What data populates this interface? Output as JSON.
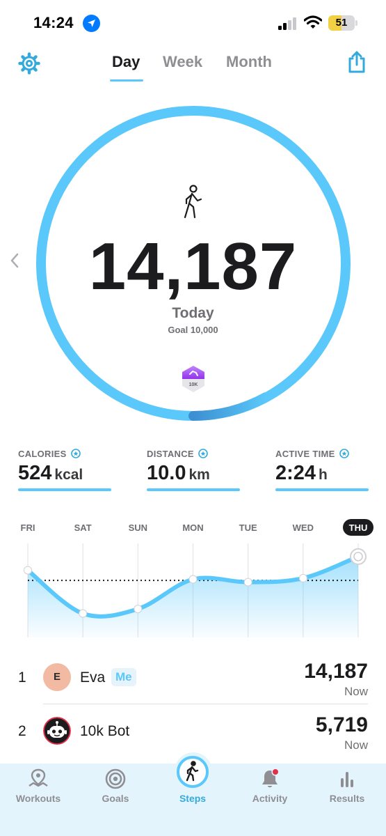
{
  "status_bar": {
    "time": "14:24",
    "battery_level": "51",
    "icons": [
      "location-arrow-icon",
      "cellular-signal-icon",
      "wifi-icon",
      "battery-icon"
    ]
  },
  "header": {
    "tabs": [
      {
        "label": "Day",
        "active": true
      },
      {
        "label": "Week",
        "active": false
      },
      {
        "label": "Month",
        "active": false
      }
    ],
    "icons": [
      "gear-icon",
      "share-icon"
    ]
  },
  "ring": {
    "steps": "14,187",
    "period_label": "Today",
    "goal_label": "Goal 10,000",
    "progress_fraction": 1.0,
    "badge_label": "10K",
    "icons": [
      "walking-person-icon",
      "chevron-left-icon",
      "10k-badge-icon"
    ]
  },
  "stats": {
    "calories": {
      "label": "CALORIES",
      "value": "524",
      "unit": "kcal"
    },
    "distance": {
      "label": "DISTANCE",
      "value": "10.0",
      "unit": "km"
    },
    "active_time": {
      "label": "ACTIVE TIME",
      "value": "2:24",
      "unit": "h"
    }
  },
  "chart_data": {
    "type": "area",
    "categories": [
      "FRI",
      "SAT",
      "SUN",
      "MON",
      "TUE",
      "WED",
      "THU"
    ],
    "series": [
      {
        "values": [
          11800,
          4200,
          5000,
          10200,
          9700,
          10400,
          14187
        ]
      }
    ],
    "goal": 10000,
    "ylim": [
      0,
      16500
    ],
    "selected": "THU",
    "grid": true
  },
  "leaderboard": [
    {
      "rank": "1",
      "initial": "E",
      "name": "Eva",
      "tag": "Me",
      "steps": "14,187",
      "when": "Now"
    },
    {
      "rank": "2",
      "name": "10k Bot",
      "steps": "5,719",
      "when": "Now"
    }
  ],
  "colors": {
    "accent": "#5ac8fa",
    "accent_dark": "#34aadc",
    "nav_bg": "#e4f4fc",
    "badge_purple": "#a855f7"
  },
  "nav": {
    "items": [
      {
        "label": "Workouts",
        "icon": "map-pin-icon",
        "active": false
      },
      {
        "label": "Goals",
        "icon": "target-icon",
        "active": false
      },
      {
        "label": "Steps",
        "icon": "walking-person-icon",
        "active": true
      },
      {
        "label": "Activity",
        "icon": "bell-icon",
        "active": false
      },
      {
        "label": "Results",
        "icon": "bar-chart-icon",
        "active": false
      }
    ]
  }
}
